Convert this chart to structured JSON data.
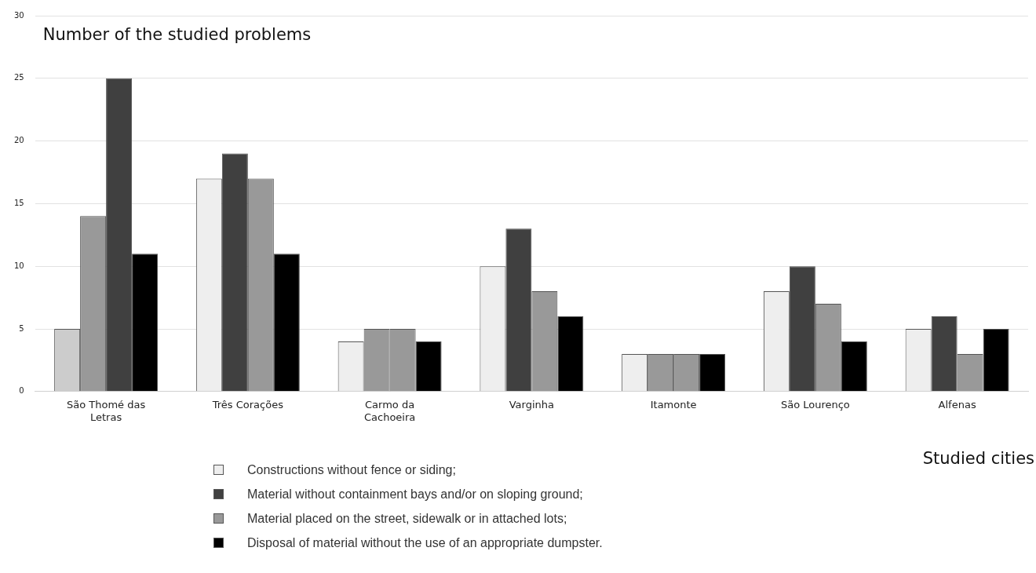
{
  "chart_data": {
    "type": "bar",
    "ylabel": "Number of the studied problems",
    "xlabel": "Studied cities",
    "categories": [
      "São Thomé das Letras",
      "Três Corações",
      "Carmo da Cachoeira",
      "Varginha",
      "Itamonte",
      "São Lourenço",
      "Alfenas"
    ],
    "series": [
      {
        "name": "Constructions without fence or siding;",
        "color": "#eeeeee",
        "colors": [
          "#cccccc",
          "#eeeeee",
          "#eeeeee",
          "#eeeeee",
          "#eeeeee",
          "#eeeeee",
          "#eeeeee"
        ],
        "values": [
          5,
          17,
          4,
          10,
          3,
          8,
          5
        ]
      },
      {
        "name": "Material without containment bays and/or on sloping ground;",
        "color": "#404040",
        "colors": [
          "#999999",
          "#404040",
          "#999999",
          "#404040",
          "#999999",
          "#404040",
          "#404040"
        ],
        "values": [
          14,
          19,
          5,
          13,
          3,
          10,
          6
        ]
      },
      {
        "name": "Material placed on the street, sidewalk or in attached lots;",
        "color": "#999999",
        "colors": [
          "#404040",
          "#999999",
          "#999999",
          "#999999",
          "#999999",
          "#999999",
          "#999999"
        ],
        "values": [
          25,
          17,
          5,
          8,
          3,
          7,
          3
        ]
      },
      {
        "name": "Disposal of material without the use of an appropriate dumpster.",
        "color": "#000000",
        "colors": [
          "#000000",
          "#000000",
          "#000000",
          "#000000",
          "#000000",
          "#000000",
          "#000000"
        ],
        "values": [
          11,
          11,
          4,
          6,
          3,
          4,
          5
        ]
      }
    ],
    "ylim": [
      0,
      30
    ],
    "yticks": [
      0,
      5,
      10,
      15,
      20,
      25,
      30
    ],
    "grid": "y",
    "legend": "bottom"
  }
}
